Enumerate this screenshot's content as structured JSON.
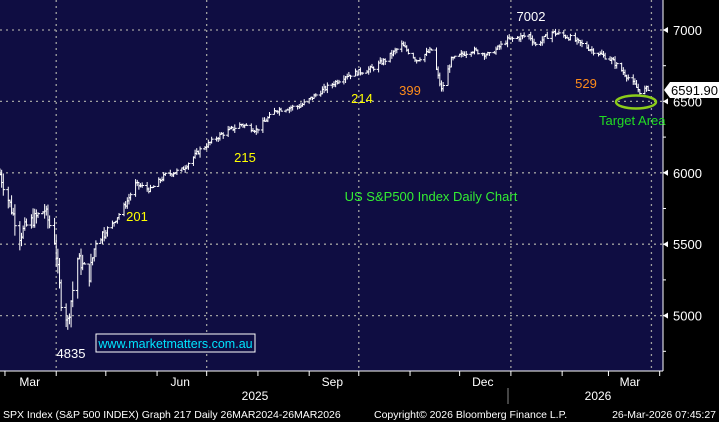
{
  "chart_data": {
    "type": "ohlc",
    "title": "US S&P500 Index Daily Chart",
    "xlabel": "",
    "ylabel": "",
    "ylim": [
      4700,
      7200
    ],
    "y_ticks": [
      5000,
      5500,
      6000,
      6500,
      7000
    ],
    "x_range": [
      "2025-02-26",
      "2026-04-03"
    ],
    "x_month_labels": [
      "Mar",
      "Jun",
      "Sep",
      "Dec",
      "Mar"
    ],
    "x_year_labels": [
      "2025",
      "2026"
    ],
    "grid": true,
    "last_price": "6591.90",
    "series": [
      {
        "points": [
          [
            "2025-02-26",
            5990
          ],
          [
            "2025-03-04",
            5780
          ],
          [
            "2025-03-10",
            5560
          ],
          [
            "2025-03-14",
            5630
          ],
          [
            "2025-03-25",
            5740
          ],
          [
            "2025-03-31",
            5530
          ],
          [
            "2025-04-04",
            5100
          ],
          [
            "2025-04-08",
            4960
          ],
          [
            "2025-04-14",
            5400
          ],
          [
            "2025-04-21",
            5280
          ],
          [
            "2025-04-25",
            5530
          ],
          [
            "2025-05-05",
            5640
          ],
          [
            "2025-05-13",
            5780
          ],
          [
            "2025-05-19",
            5920
          ],
          [
            "2025-05-28",
            5880
          ],
          [
            "2025-06-06",
            5985
          ],
          [
            "2025-06-16",
            6020
          ],
          [
            "2025-06-27",
            6160
          ],
          [
            "2025-07-10",
            6270
          ],
          [
            "2025-07-22",
            6340
          ],
          [
            "2025-07-31",
            6300
          ],
          [
            "2025-08-12",
            6440
          ],
          [
            "2025-08-27",
            6470
          ],
          [
            "2025-09-08",
            6570
          ],
          [
            "2025-09-23",
            6680
          ],
          [
            "2025-10-09",
            6730
          ],
          [
            "2025-10-17",
            6790
          ],
          [
            "2025-10-27",
            6895
          ],
          [
            "2025-11-05",
            6790
          ],
          [
            "2025-11-14",
            6860
          ],
          [
            "2025-11-20",
            6580
          ],
          [
            "2025-11-26",
            6790
          ],
          [
            "2025-12-08",
            6860
          ],
          [
            "2025-12-19",
            6825
          ],
          [
            "2025-12-30",
            6930
          ],
          [
            "2026-01-12",
            6965
          ],
          [
            "2026-01-16",
            6895
          ],
          [
            "2026-01-26",
            6985
          ],
          [
            "2026-02-06",
            6945
          ],
          [
            "2026-02-19",
            6860
          ],
          [
            "2026-03-03",
            6790
          ],
          [
            "2026-03-12",
            6680
          ],
          [
            "2026-03-20",
            6570
          ],
          [
            "2026-03-25",
            6592
          ]
        ]
      }
    ],
    "annotations": [
      {
        "text": "7002",
        "color": "#ffffff"
      },
      {
        "text": "529",
        "color": "#ff8c1a"
      },
      {
        "text": "399",
        "color": "#ff8c1a"
      },
      {
        "text": "214",
        "color": "#ffff00"
      },
      {
        "text": "215",
        "color": "#ffff00"
      },
      {
        "text": "201",
        "color": "#ffff00"
      },
      {
        "text": "4835",
        "color": "#ffffff"
      },
      {
        "text": "US S&P500 Index Daily Chart",
        "color": "#33ee33"
      },
      {
        "text": "Target Area",
        "color": "#22dd22"
      }
    ],
    "target_ellipse_color": "#8ccc1a"
  },
  "watermark": "www.marketmatters.com.au",
  "footer": {
    "left": "SPX Index (S&P 500 INDEX) Graph 217 Daily 26MAR2024-26MAR2026",
    "middle": "Copyright© 2026 Bloomberg Finance L.P.",
    "right": "26-Mar-2026 07:45:27"
  },
  "colors": {
    "background": "#0f0d42",
    "bars": "#ffffff",
    "grid": "#a0a0a0",
    "watermark_text": "#00e5ff"
  }
}
